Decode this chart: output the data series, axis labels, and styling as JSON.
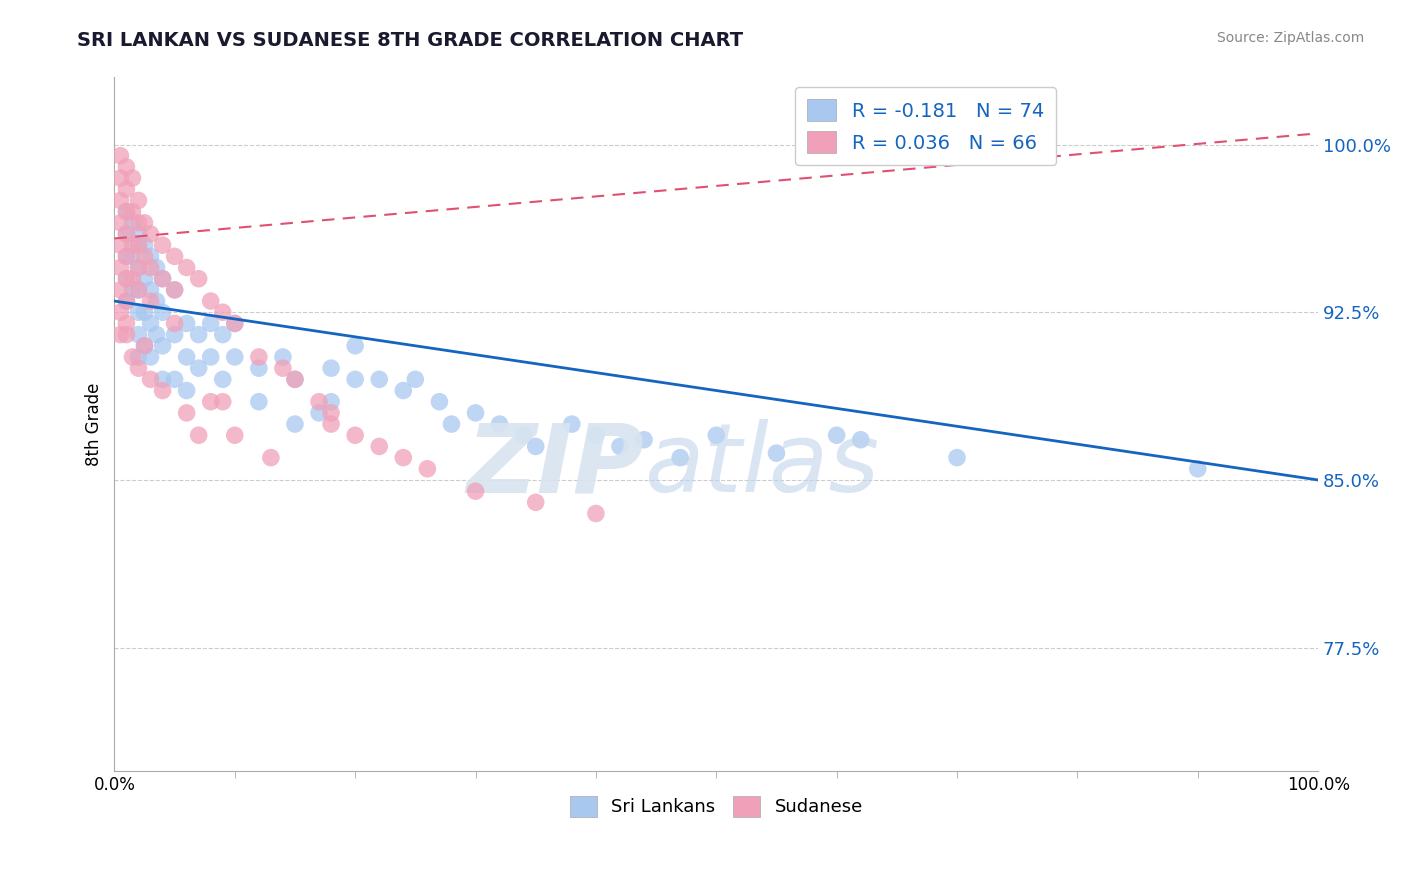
{
  "title": "SRI LANKAN VS SUDANESE 8TH GRADE CORRELATION CHART",
  "source": "Source: ZipAtlas.com",
  "ylabel": "8th Grade",
  "y_ticks": [
    0.775,
    0.85,
    0.925,
    1.0
  ],
  "y_tick_labels": [
    "77.5%",
    "85.0%",
    "92.5%",
    "100.0%"
  ],
  "x_range": [
    0.0,
    1.0
  ],
  "y_range": [
    0.72,
    1.03
  ],
  "blue_R": -0.181,
  "blue_N": 74,
  "pink_R": 0.036,
  "pink_N": 66,
  "blue_color": "#A8C8F0",
  "pink_color": "#F0A0B8",
  "blue_line_color": "#1565C0",
  "pink_line_color": "#E05070",
  "grid_color": "#CCCCCC",
  "legend_blue_label": "Sri Lankans",
  "legend_pink_label": "Sudanese",
  "blue_line_x0": 0.0,
  "blue_line_y0": 0.93,
  "blue_line_x1": 1.0,
  "blue_line_y1": 0.85,
  "pink_line_x0": 0.0,
  "pink_line_y0": 0.958,
  "pink_line_x1": 1.0,
  "pink_line_y1": 1.005,
  "blue_scatter_x": [
    0.01,
    0.01,
    0.01,
    0.01,
    0.01,
    0.015,
    0.015,
    0.015,
    0.02,
    0.02,
    0.02,
    0.02,
    0.02,
    0.02,
    0.02,
    0.025,
    0.025,
    0.025,
    0.025,
    0.03,
    0.03,
    0.03,
    0.03,
    0.035,
    0.035,
    0.035,
    0.04,
    0.04,
    0.04,
    0.04,
    0.05,
    0.05,
    0.05,
    0.06,
    0.06,
    0.06,
    0.07,
    0.07,
    0.08,
    0.08,
    0.09,
    0.09,
    0.1,
    0.1,
    0.12,
    0.12,
    0.14,
    0.15,
    0.15,
    0.17,
    0.18,
    0.18,
    0.2,
    0.2,
    0.22,
    0.24,
    0.25,
    0.27,
    0.28,
    0.3,
    0.32,
    0.34,
    0.35,
    0.38,
    0.4,
    0.42,
    0.44,
    0.47,
    0.5,
    0.55,
    0.6,
    0.62,
    0.7,
    0.9
  ],
  "blue_scatter_y": [
    0.97,
    0.96,
    0.95,
    0.94,
    0.93,
    0.965,
    0.95,
    0.935,
    0.96,
    0.955,
    0.945,
    0.935,
    0.925,
    0.915,
    0.905,
    0.955,
    0.94,
    0.925,
    0.91,
    0.95,
    0.935,
    0.92,
    0.905,
    0.945,
    0.93,
    0.915,
    0.94,
    0.925,
    0.91,
    0.895,
    0.935,
    0.915,
    0.895,
    0.92,
    0.905,
    0.89,
    0.915,
    0.9,
    0.92,
    0.905,
    0.915,
    0.895,
    0.92,
    0.905,
    0.9,
    0.885,
    0.905,
    0.895,
    0.875,
    0.88,
    0.9,
    0.885,
    0.91,
    0.895,
    0.895,
    0.89,
    0.895,
    0.885,
    0.875,
    0.88,
    0.875,
    0.87,
    0.865,
    0.875,
    0.87,
    0.865,
    0.868,
    0.86,
    0.87,
    0.862,
    0.87,
    0.868,
    0.86,
    0.855
  ],
  "pink_scatter_x": [
    0.005,
    0.005,
    0.005,
    0.005,
    0.005,
    0.005,
    0.005,
    0.005,
    0.005,
    0.01,
    0.01,
    0.01,
    0.01,
    0.01,
    0.01,
    0.01,
    0.01,
    0.015,
    0.015,
    0.015,
    0.015,
    0.02,
    0.02,
    0.02,
    0.02,
    0.02,
    0.025,
    0.025,
    0.03,
    0.03,
    0.03,
    0.04,
    0.04,
    0.05,
    0.05,
    0.06,
    0.07,
    0.08,
    0.09,
    0.1,
    0.12,
    0.14,
    0.15,
    0.17,
    0.18,
    0.2,
    0.22,
    0.24,
    0.26,
    0.3,
    0.35,
    0.4,
    0.18,
    0.06,
    0.07,
    0.1,
    0.13,
    0.08,
    0.04,
    0.03,
    0.02,
    0.025,
    0.015,
    0.01,
    0.05,
    0.09
  ],
  "pink_scatter_y": [
    0.995,
    0.985,
    0.975,
    0.965,
    0.955,
    0.945,
    0.935,
    0.925,
    0.915,
    0.99,
    0.98,
    0.97,
    0.96,
    0.95,
    0.94,
    0.93,
    0.92,
    0.985,
    0.97,
    0.955,
    0.94,
    0.975,
    0.965,
    0.955,
    0.945,
    0.935,
    0.965,
    0.95,
    0.96,
    0.945,
    0.93,
    0.955,
    0.94,
    0.95,
    0.935,
    0.945,
    0.94,
    0.93,
    0.925,
    0.92,
    0.905,
    0.9,
    0.895,
    0.885,
    0.88,
    0.87,
    0.865,
    0.86,
    0.855,
    0.845,
    0.84,
    0.835,
    0.875,
    0.88,
    0.87,
    0.87,
    0.86,
    0.885,
    0.89,
    0.895,
    0.9,
    0.91,
    0.905,
    0.915,
    0.92,
    0.885
  ]
}
